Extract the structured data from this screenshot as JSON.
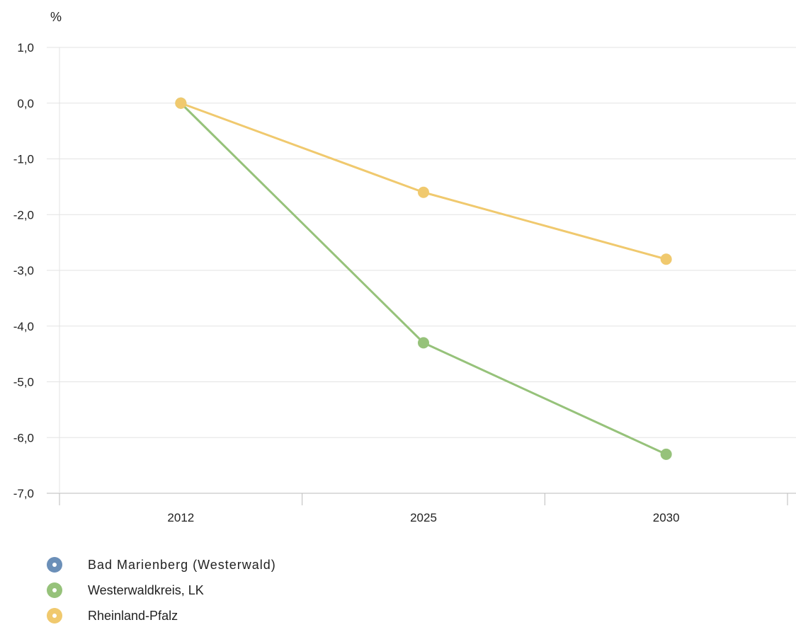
{
  "chart_data": {
    "type": "line",
    "unit": "%",
    "categories": [
      "2012",
      "2025",
      "2030"
    ],
    "ylim": [
      -7.0,
      1.0
    ],
    "yticks": [
      1.0,
      0.0,
      -1.0,
      -2.0,
      -3.0,
      -4.0,
      -5.0,
      -6.0,
      -7.0
    ],
    "ytick_labels": [
      "1,0",
      "0,0",
      "-1,0",
      "-2,0",
      "-3,0",
      "-4,0",
      "-5,0",
      "-6,0",
      "-7,0"
    ],
    "grid": true,
    "legend_position": "bottom-left",
    "series": [
      {
        "name": "Bad Marienberg (Westerwald)",
        "color": "#6b8fb8",
        "values": [
          null,
          null,
          null
        ]
      },
      {
        "name": "Westerwaldkreis, LK",
        "color": "#96c27a",
        "values": [
          0.0,
          -4.3,
          -6.3
        ]
      },
      {
        "name": "Rheinland-Pfalz",
        "color": "#f0c96e",
        "values": [
          0.0,
          -1.6,
          -2.8
        ]
      }
    ]
  }
}
